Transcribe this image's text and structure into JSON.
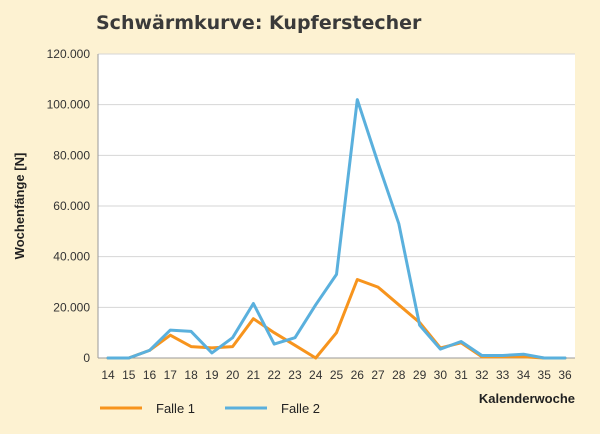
{
  "title": "Schwärmkurve: Kupferstecher",
  "chart_data": {
    "type": "line",
    "title": "Schwärmkurve: Kupferstecher",
    "xlabel": "Kalenderwoche",
    "ylabel": "Wochenfänge [N]",
    "x": [
      "14",
      "15",
      "16",
      "17",
      "18",
      "19",
      "20",
      "21",
      "22",
      "23",
      "24",
      "25",
      "26",
      "27",
      "28",
      "29",
      "30",
      "31",
      "32",
      "33",
      "34",
      "35",
      "36"
    ],
    "ylim": [
      0,
      120000
    ],
    "yticks": [
      0,
      20000,
      40000,
      60000,
      80000,
      100000,
      120000
    ],
    "ytick_labels": [
      "0",
      "20.000",
      "40.000",
      "60.000",
      "80.000",
      "100.000",
      "120.000"
    ],
    "grid": "horizontal",
    "legend": "bottom-left",
    "series": [
      {
        "name": "Falle 1",
        "color": "#f7941d",
        "values": [
          0,
          0,
          3000,
          9000,
          4500,
          4000,
          4500,
          15500,
          10000,
          5000,
          0,
          10000,
          31000,
          28000,
          21000,
          14000,
          4000,
          6000,
          500,
          500,
          500,
          0,
          0
        ]
      },
      {
        "name": "Falle 2",
        "color": "#5ab0dd",
        "values": [
          0,
          0,
          3000,
          11000,
          10500,
          2000,
          8000,
          21500,
          5500,
          8000,
          21000,
          33000,
          102000,
          77000,
          53000,
          13000,
          3500,
          6500,
          1000,
          1000,
          1500,
          0,
          0
        ]
      }
    ]
  }
}
